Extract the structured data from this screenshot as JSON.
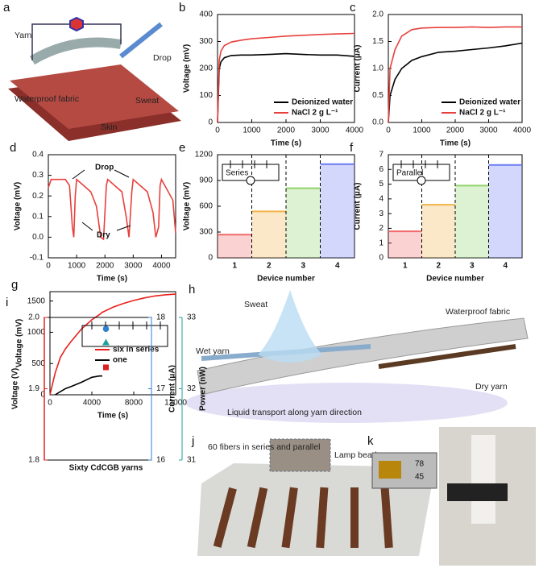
{
  "chart_data": [
    {
      "panel_label": "b",
      "type": "line",
      "xlabel": "Time (s)",
      "ylabel": "Voltage (mV)",
      "xlim": [
        0,
        4000
      ],
      "xticks": [
        0,
        1000,
        2000,
        3000,
        4000
      ],
      "ylim": [
        0,
        400
      ],
      "yticks": [
        0,
        100,
        200,
        300,
        400
      ],
      "x": [
        0,
        50,
        100,
        200,
        400,
        700,
        1000,
        1500,
        2000,
        2500,
        3000,
        3500,
        4000
      ],
      "legend": "lower right",
      "series": [
        {
          "name": "Deionized water",
          "color": "#000000",
          "values": [
            0,
            200,
            225,
            240,
            248,
            250,
            250,
            252,
            255,
            252,
            250,
            250,
            245
          ]
        },
        {
          "name": "NaCl 2 g L⁻¹",
          "color": "#e8403c",
          "values": [
            0,
            230,
            265,
            285,
            298,
            305,
            310,
            315,
            320,
            323,
            326,
            328,
            330
          ]
        }
      ]
    },
    {
      "panel_label": "c",
      "type": "line",
      "xlabel": "Time (s)",
      "ylabel": "Current (μA)",
      "xlim": [
        0,
        4000
      ],
      "xticks": [
        0,
        1000,
        2000,
        3000,
        4000
      ],
      "ylim": [
        0,
        2.0
      ],
      "yticks": [
        {
          "value": 0,
          "label": "0.0"
        },
        0.5,
        {
          "value": 1,
          "label": "1.0"
        },
        1.5,
        {
          "value": 2,
          "label": "2.0"
        }
      ],
      "x": [
        0,
        50,
        200,
        400,
        700,
        1000,
        1500,
        2000,
        2500,
        3000,
        3500,
        4000
      ],
      "legend": "lower right",
      "series": [
        {
          "name": "Deionized water",
          "color": "#000000",
          "values": [
            0,
            0.5,
            0.8,
            1.0,
            1.15,
            1.22,
            1.3,
            1.32,
            1.35,
            1.38,
            1.42,
            1.47
          ]
        },
        {
          "name": "NaCl 2 g L⁻¹",
          "color": "#e8403c",
          "values": [
            0,
            1.0,
            1.35,
            1.6,
            1.72,
            1.75,
            1.76,
            1.76,
            1.77,
            1.76,
            1.77,
            1.77
          ]
        }
      ]
    },
    {
      "panel_label": "d",
      "type": "line",
      "xlabel": "Time (s)",
      "ylabel": "Voltage (mV)",
      "xlim": [
        0,
        4500
      ],
      "xticks": [
        0,
        1000,
        2000,
        3000,
        4000
      ],
      "ylim": [
        -0.1,
        0.4
      ],
      "yticks": [
        -0.1,
        {
          "value": 0,
          "label": "0.0"
        },
        0.1,
        0.2,
        0.3,
        0.4
      ],
      "x": [
        0,
        100,
        600,
        750,
        850,
        900,
        950,
        1000,
        1500,
        1700,
        1850,
        1950,
        2050,
        2100,
        2600,
        2750,
        2850,
        2950,
        3000,
        3500,
        3700,
        3800,
        3900,
        3950,
        4000,
        4400,
        4500
      ],
      "annotations": [
        "Drop",
        "Dry"
      ],
      "series": [
        {
          "color": "#e8403c",
          "values": [
            0.24,
            0.28,
            0.28,
            0.25,
            0.05,
            0.0,
            0.2,
            0.28,
            0.22,
            0.15,
            0.0,
            -0.01,
            0.25,
            0.28,
            0.22,
            0.1,
            0.0,
            0.22,
            0.28,
            0.22,
            0.12,
            0.0,
            0.05,
            0.25,
            0.28,
            0.18,
            0.02
          ]
        }
      ]
    },
    {
      "panel_label": "e",
      "type": "step",
      "xlabel": "Device number",
      "ylabel": "Voltage (mV)",
      "inset_label": "Series",
      "categories": [
        "1",
        "2",
        "3",
        "4"
      ],
      "ylim": [
        0,
        1200
      ],
      "yticks": [
        0,
        300,
        600,
        900,
        1200
      ],
      "values": [
        270,
        540,
        810,
        1090
      ],
      "colors": [
        "#f26a6a",
        "#f0b44a",
        "#8fd46a",
        "#6b7cf2"
      ]
    },
    {
      "panel_label": "f",
      "type": "step",
      "xlabel": "Device number",
      "ylabel": "Current (μA)",
      "inset_label": "Parallel",
      "categories": [
        "1",
        "2",
        "3",
        "4"
      ],
      "ylim": [
        0,
        7
      ],
      "yticks": [
        0,
        1,
        2,
        3,
        4,
        5,
        6,
        7
      ],
      "values": [
        1.8,
        3.6,
        4.9,
        6.3
      ],
      "colors": [
        "#f26a6a",
        "#f0b44a",
        "#8fd46a",
        "#6b7cf2"
      ]
    },
    {
      "panel_label": "g",
      "type": "line",
      "xlabel": "Time (s)",
      "ylabel": "Voltage (mV)",
      "xlim": [
        0,
        12000
      ],
      "xticks": [
        0,
        4000,
        8000,
        12000
      ],
      "ylim": [
        0,
        1650
      ],
      "yticks": [
        0,
        500,
        1000,
        1500
      ],
      "x": [
        0,
        500,
        1000,
        1500,
        2000,
        3000,
        4000,
        4700,
        5000,
        6000,
        7000,
        8000,
        9000,
        10000,
        11000,
        12000
      ],
      "legend": "center right",
      "series": [
        {
          "name": "six in series",
          "color": "#e8201c",
          "values": [
            0,
            350,
            600,
            740,
            850,
            1050,
            1200,
            1280,
            1320,
            1400,
            1460,
            1510,
            1550,
            1580,
            1600,
            1610
          ]
        },
        {
          "name": "one",
          "color": "#000000",
          "values": [
            null,
            0,
            50,
            100,
            130,
            200,
            280,
            300,
            300,
            null,
            null,
            null,
            null,
            null,
            null,
            null
          ]
        }
      ]
    },
    {
      "panel_label": "i",
      "type": "scatter",
      "categories": [
        "Sixty CdCGB yarns"
      ],
      "series": [
        {
          "name": "Voltage (V)",
          "color": "#e02020",
          "marker": "square",
          "values": [
            1.93
          ],
          "ylim": [
            1.8,
            2.0
          ],
          "yticks": [
            1.8,
            1.9,
            {
              "value": 2,
              "label": "2.0"
            }
          ]
        },
        {
          "name": "Current (μA)",
          "color": "#2f7fd0",
          "marker": "circle",
          "values": [
            17.84
          ],
          "ylim": [
            16,
            18
          ],
          "yticks": [
            16,
            17,
            18
          ]
        },
        {
          "name": "Power (nW)",
          "color": "#1ba39a",
          "marker": "triangle",
          "values": [
            32.65
          ],
          "ylim": [
            31,
            33
          ],
          "yticks": [
            31,
            32,
            33
          ]
        }
      ]
    }
  ],
  "figures": {
    "a": {
      "panel_label": "a",
      "labels": [
        "Yarn",
        "Drop",
        "Waterproof fabric",
        "Sweat",
        "Skin"
      ]
    },
    "h": {
      "panel_label": "h",
      "labels": [
        "Sweat",
        "Waterproof fabric",
        "Wet yarn",
        "Dry yarn",
        "Liquid transport along yarn direction"
      ]
    },
    "j": {
      "panel_label": "j",
      "labels": [
        "60 fibers in series and parallel",
        "Lamp bead"
      ]
    },
    "k": {
      "panel_label": "k",
      "labels": [
        "78",
        "45"
      ]
    }
  }
}
